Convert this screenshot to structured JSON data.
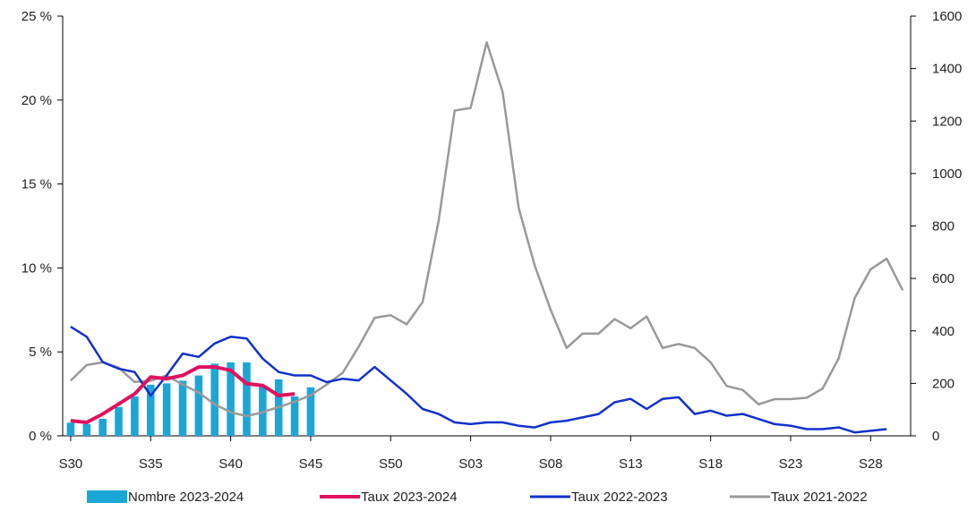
{
  "chart_data": {
    "type": "bar+line",
    "title": "",
    "xlabel": "",
    "ylabel_left": "",
    "ylabel_right": "",
    "x_ticks": [
      "S30",
      "S35",
      "S40",
      "S45",
      "S50",
      "S03",
      "S08",
      "S13",
      "S18",
      "S23",
      "S28"
    ],
    "y_left": {
      "min": 0,
      "max": 25,
      "ticks": [
        "0 %",
        "5 %",
        "10 %",
        "15 %",
        "20 %",
        "25 %"
      ]
    },
    "y_right": {
      "min": 0,
      "max": 1600,
      "ticks": [
        "0",
        "200",
        "400",
        "600",
        "800",
        "1000",
        "1200",
        "1400",
        "1600"
      ]
    },
    "grid": false,
    "legend_position": "bottom",
    "series": [
      {
        "name": "Nombre 2023-2024",
        "kind": "bar",
        "axis": "right",
        "color": "#1aa7d8",
        "values": [
          50,
          45,
          65,
          110,
          150,
          195,
          200,
          210,
          230,
          275,
          280,
          280,
          190,
          215,
          150,
          185
        ]
      },
      {
        "name": "Taux 2023-2024",
        "kind": "line",
        "axis": "left",
        "color": "#e0115f",
        "values": [
          0.9,
          0.8,
          1.3,
          1.9,
          2.5,
          3.5,
          3.4,
          3.6,
          4.1,
          4.1,
          3.9,
          3.1,
          3.0,
          2.4,
          2.5
        ]
      },
      {
        "name": "Taux 2022-2023",
        "kind": "line",
        "axis": "left",
        "color": "#1231c9",
        "values": [
          6.5,
          5.9,
          4.4,
          4.0,
          3.8,
          2.4,
          3.6,
          4.9,
          4.7,
          5.5,
          5.9,
          5.8,
          4.6,
          3.8,
          3.6,
          3.6,
          3.2,
          3.4,
          3.3,
          4.1,
          3.3,
          2.5,
          1.6,
          1.3,
          0.8,
          0.7,
          0.8,
          0.8,
          0.6,
          0.5,
          0.8,
          0.9,
          1.1,
          1.3,
          2.0,
          2.2,
          1.6,
          2.2,
          2.3,
          1.3,
          1.5,
          1.2,
          1.3,
          1.0,
          0.7,
          0.6,
          0.4,
          0.4,
          0.5,
          0.2,
          0.3,
          0.4
        ]
      },
      {
        "name": "Taux 2021-2022",
        "kind": "line",
        "axis": "right",
        "color": "#999999",
        "values": [
          210,
          270,
          280,
          260,
          205,
          210,
          230,
          195,
          165,
          120,
          90,
          75,
          90,
          110,
          130,
          155,
          195,
          240,
          340,
          450,
          460,
          425,
          510,
          820,
          1240,
          1250,
          1500,
          1310,
          870,
          650,
          480,
          335,
          390,
          390,
          445,
          410,
          455,
          335,
          350,
          335,
          280,
          190,
          175,
          120,
          140,
          140,
          145,
          180,
          295,
          525,
          635,
          675,
          555
        ]
      }
    ]
  }
}
